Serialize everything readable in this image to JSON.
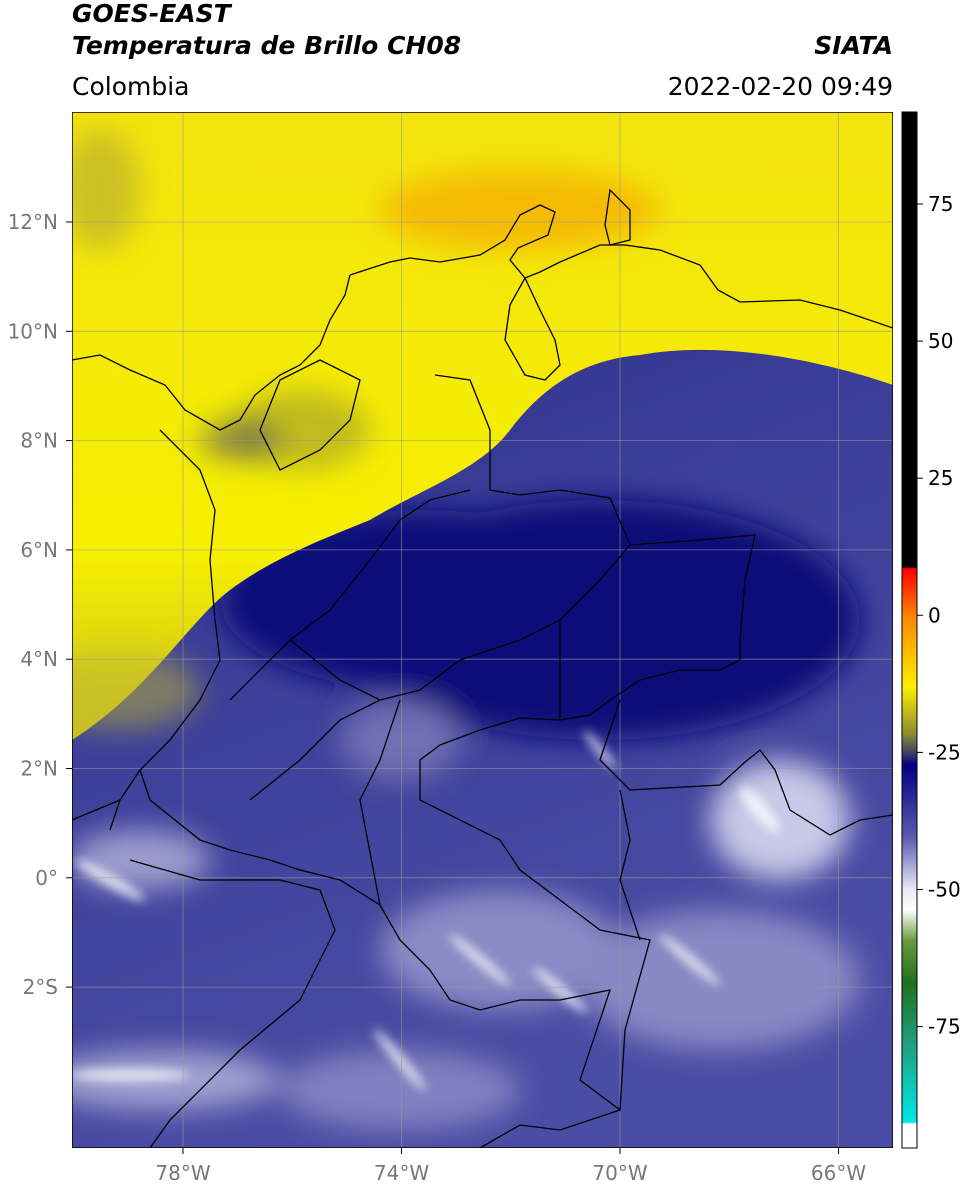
{
  "header": {
    "satellite": "GOES-EAST",
    "product": "Temperatura de Brillo CH08",
    "source": "SIATA",
    "region": "Colombia",
    "datetime": "2022-02-20 09:49"
  },
  "map": {
    "lat_labels": [
      "12°N",
      "10°N",
      "8°N",
      "6°N",
      "4°N",
      "2°N",
      "0°",
      "2°S"
    ],
    "lon_labels": [
      "78°W",
      "74°W",
      "70°W",
      "66°W"
    ]
  },
  "colorbar": {
    "ticks": [
      "75",
      "50",
      "25",
      "0",
      "-25",
      "-50",
      "-75"
    ]
  }
}
